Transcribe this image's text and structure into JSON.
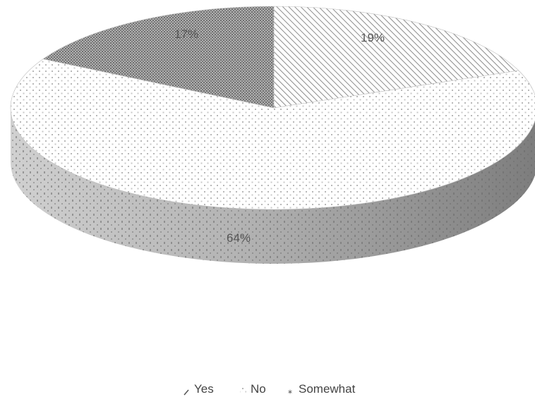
{
  "chart_data": {
    "type": "pie",
    "style": "3d",
    "title": "",
    "categories": [
      "Yes",
      "No",
      "Somewhat"
    ],
    "values": [
      19,
      64,
      17
    ],
    "data_labels": [
      "19%",
      "64%",
      "17%"
    ],
    "legend_position": "bottom",
    "legend": [
      "Yes",
      "No",
      "Somewhat"
    ],
    "fills": {
      "Yes": "diagonal-hatch",
      "No": "dotted",
      "Somewhat": "dense-dots"
    },
    "colors": {
      "edge": "#bdbdbd",
      "side_dark": "#9a9a9a",
      "text": "#555555"
    }
  }
}
